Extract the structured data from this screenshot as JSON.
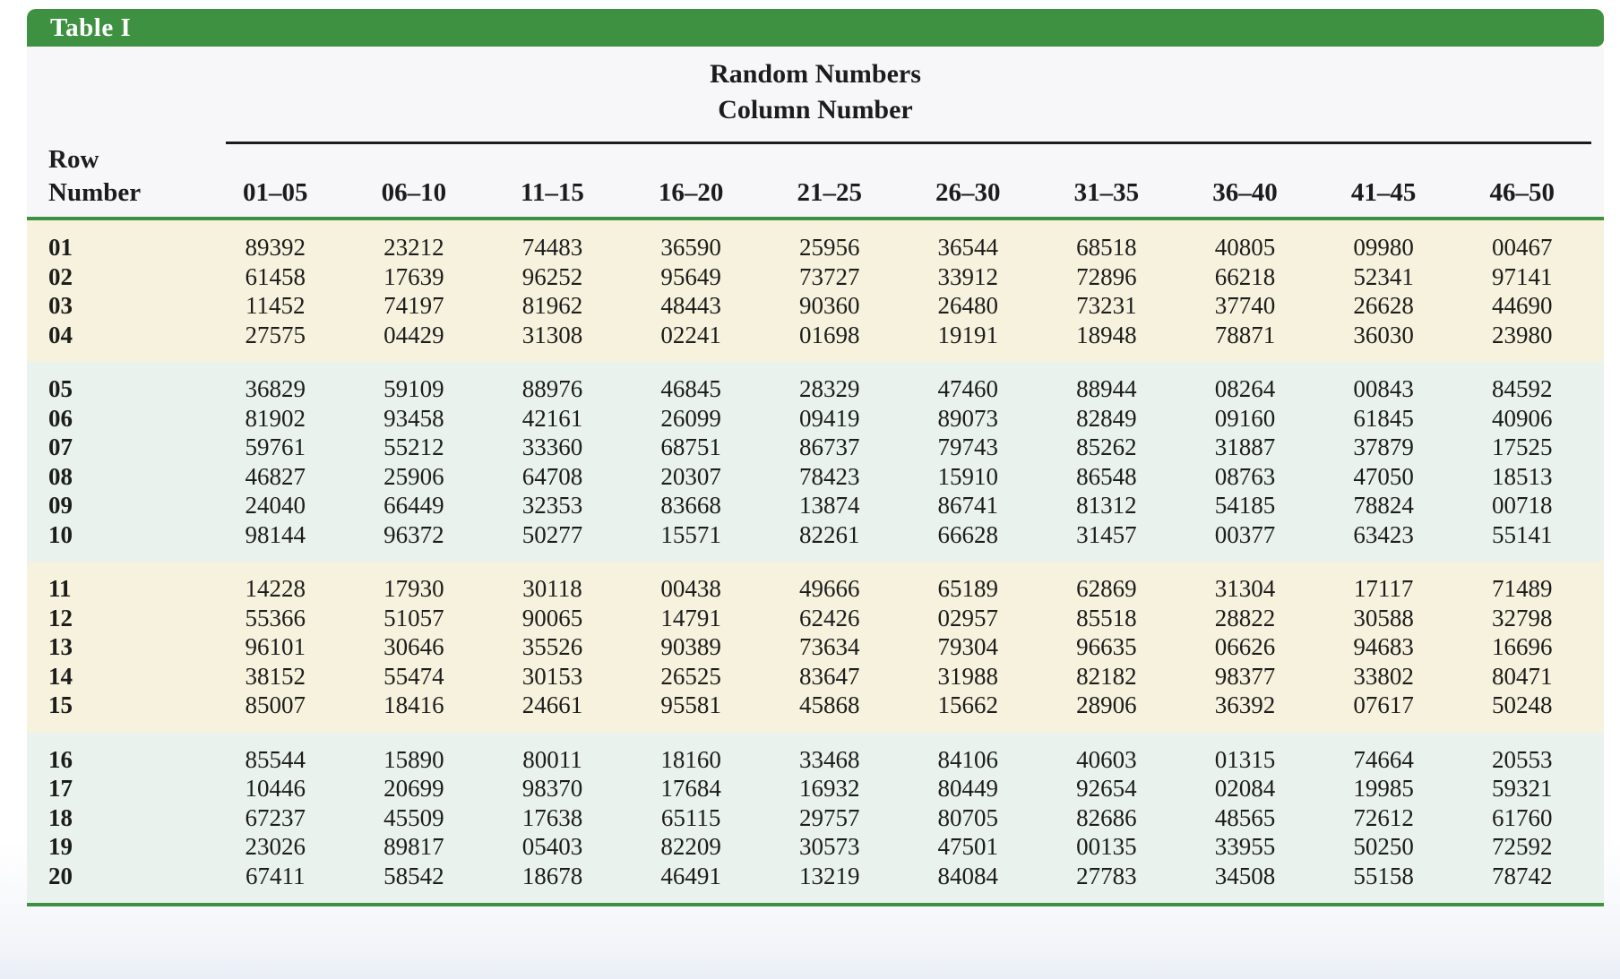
{
  "table": {
    "tab_label": "Table I",
    "title": "Random Numbers",
    "subtitle": "Column Number",
    "row_header_line1": "Row",
    "row_header_line2": "Number",
    "columns": [
      "01–05",
      "06–10",
      "11–15",
      "16–20",
      "21–25",
      "26–30",
      "31–35",
      "36–40",
      "41–45",
      "46–50"
    ],
    "colors": {
      "accent_green": "#3f9142",
      "band_cream": "#f6f2dd",
      "band_mint": "#e9f2ec",
      "header_bg": "#f7f7f9",
      "tab_text": "#ffffff",
      "text": "#1c1c1c"
    },
    "groups": [
      {
        "rows": [
          {
            "row_number": "01",
            "values": [
              "89392",
              "23212",
              "74483",
              "36590",
              "25956",
              "36544",
              "68518",
              "40805",
              "09980",
              "00467"
            ]
          },
          {
            "row_number": "02",
            "values": [
              "61458",
              "17639",
              "96252",
              "95649",
              "73727",
              "33912",
              "72896",
              "66218",
              "52341",
              "97141"
            ]
          },
          {
            "row_number": "03",
            "values": [
              "11452",
              "74197",
              "81962",
              "48443",
              "90360",
              "26480",
              "73231",
              "37740",
              "26628",
              "44690"
            ]
          },
          {
            "row_number": "04",
            "values": [
              "27575",
              "04429",
              "31308",
              "02241",
              "01698",
              "19191",
              "18948",
              "78871",
              "36030",
              "23980"
            ]
          }
        ]
      },
      {
        "rows": [
          {
            "row_number": "05",
            "values": [
              "36829",
              "59109",
              "88976",
              "46845",
              "28329",
              "47460",
              "88944",
              "08264",
              "00843",
              "84592"
            ]
          },
          {
            "row_number": "06",
            "values": [
              "81902",
              "93458",
              "42161",
              "26099",
              "09419",
              "89073",
              "82849",
              "09160",
              "61845",
              "40906"
            ]
          },
          {
            "row_number": "07",
            "values": [
              "59761",
              "55212",
              "33360",
              "68751",
              "86737",
              "79743",
              "85262",
              "31887",
              "37879",
              "17525"
            ]
          },
          {
            "row_number": "08",
            "values": [
              "46827",
              "25906",
              "64708",
              "20307",
              "78423",
              "15910",
              "86548",
              "08763",
              "47050",
              "18513"
            ]
          },
          {
            "row_number": "09",
            "values": [
              "24040",
              "66449",
              "32353",
              "83668",
              "13874",
              "86741",
              "81312",
              "54185",
              "78824",
              "00718"
            ]
          },
          {
            "row_number": "10",
            "values": [
              "98144",
              "96372",
              "50277",
              "15571",
              "82261",
              "66628",
              "31457",
              "00377",
              "63423",
              "55141"
            ]
          }
        ]
      },
      {
        "rows": [
          {
            "row_number": "11",
            "values": [
              "14228",
              "17930",
              "30118",
              "00438",
              "49666",
              "65189",
              "62869",
              "31304",
              "17117",
              "71489"
            ]
          },
          {
            "row_number": "12",
            "values": [
              "55366",
              "51057",
              "90065",
              "14791",
              "62426",
              "02957",
              "85518",
              "28822",
              "30588",
              "32798"
            ]
          },
          {
            "row_number": "13",
            "values": [
              "96101",
              "30646",
              "35526",
              "90389",
              "73634",
              "79304",
              "96635",
              "06626",
              "94683",
              "16696"
            ]
          },
          {
            "row_number": "14",
            "values": [
              "38152",
              "55474",
              "30153",
              "26525",
              "83647",
              "31988",
              "82182",
              "98377",
              "33802",
              "80471"
            ]
          },
          {
            "row_number": "15",
            "values": [
              "85007",
              "18416",
              "24661",
              "95581",
              "45868",
              "15662",
              "28906",
              "36392",
              "07617",
              "50248"
            ]
          }
        ]
      },
      {
        "rows": [
          {
            "row_number": "16",
            "values": [
              "85544",
              "15890",
              "80011",
              "18160",
              "33468",
              "84106",
              "40603",
              "01315",
              "74664",
              "20553"
            ]
          },
          {
            "row_number": "17",
            "values": [
              "10446",
              "20699",
              "98370",
              "17684",
              "16932",
              "80449",
              "92654",
              "02084",
              "19985",
              "59321"
            ]
          },
          {
            "row_number": "18",
            "values": [
              "67237",
              "45509",
              "17638",
              "65115",
              "29757",
              "80705",
              "82686",
              "48565",
              "72612",
              "61760"
            ]
          },
          {
            "row_number": "19",
            "values": [
              "23026",
              "89817",
              "05403",
              "82209",
              "30573",
              "47501",
              "00135",
              "33955",
              "50250",
              "72592"
            ]
          },
          {
            "row_number": "20",
            "values": [
              "67411",
              "58542",
              "18678",
              "46491",
              "13219",
              "84084",
              "27783",
              "34508",
              "55158",
              "78742"
            ]
          }
        ]
      }
    ]
  }
}
